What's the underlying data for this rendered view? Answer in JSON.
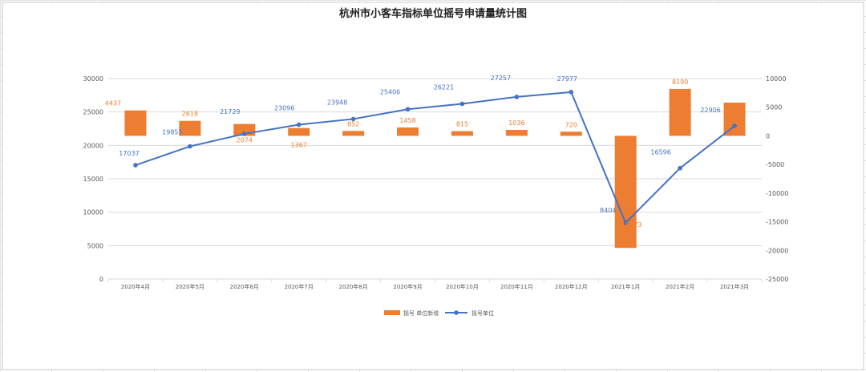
{
  "colors": {
    "bar": "#ED7D31",
    "line": "#4472C4",
    "grid": "#D9D9D9",
    "sheet_grid": "#E4E4E4",
    "axis_text": "#595959"
  },
  "chart_data": {
    "type": "bar",
    "title": "杭州市小客车指标单位摇号申请量统计图",
    "categories": [
      "2020年4月",
      "2020年5月",
      "2020年6月",
      "2020年7月",
      "2020年8月",
      "2020年9月",
      "2020年10月",
      "2020年11月",
      "2020年12月",
      "2021年1月",
      "2021年2月",
      "2021年3月"
    ],
    "series": [
      {
        "name": "摇号 单位新增",
        "chart_type": "bar",
        "axis": "right",
        "values": [
          4437,
          2618,
          2074,
          1367,
          852,
          1458,
          815,
          1036,
          720,
          -19573,
          8190,
          5800
        ],
        "labels": [
          "4437",
          "2618",
          "2074",
          "1367",
          "852",
          "1458",
          "815",
          "1036",
          "720",
          "-19573",
          "8190",
          ""
        ]
      },
      {
        "name": "摇号单位",
        "chart_type": "line",
        "axis": "left",
        "values": [
          17037,
          19855,
          21729,
          23096,
          23948,
          25406,
          26221,
          27257,
          27977,
          8404,
          16596,
          22906
        ],
        "labels": [
          "17037",
          "19855",
          "21729",
          "23096",
          "23948",
          "25406",
          "26221",
          "27257",
          "27977",
          "8404",
          "16596",
          "22906"
        ]
      }
    ],
    "y_left": {
      "min": 0,
      "max": 30000,
      "ticks": [
        0,
        5000,
        10000,
        15000,
        20000,
        25000,
        30000
      ]
    },
    "y_right": {
      "min": -25000,
      "max": 10000,
      "ticks": [
        -25000,
        -20000,
        -15000,
        -10000,
        -5000,
        0,
        5000,
        10000
      ]
    },
    "grid": true,
    "legend_position": "bottom"
  }
}
